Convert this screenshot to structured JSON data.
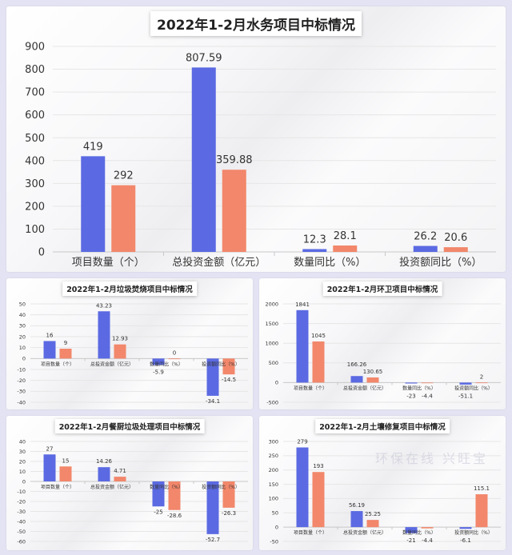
{
  "colors": {
    "series_2022": "#5b6ae2",
    "series_2021": "#f2876b",
    "background": "#e3e3f3"
  },
  "chart_data": [
    {
      "type": "bar",
      "title": "2022年1-2月水务项目中标情况",
      "categories": [
        "项目数量（个）",
        "总投资金额（亿元）",
        "数量同比（%）",
        "投资额同比（%）"
      ],
      "series": [
        {
          "values": [
            419,
            807.59,
            12.3,
            26.2
          ]
        },
        {
          "values": [
            292,
            359.88,
            28.1,
            20.6
          ]
        }
      ],
      "ylim": [
        0,
        900
      ],
      "yticks": [
        0,
        100,
        200,
        300,
        400,
        500,
        600,
        700,
        800,
        900
      ],
      "grid": true
    },
    {
      "type": "bar",
      "title": "2022年1-2月垃圾焚烧项目中标情况",
      "categories": [
        "项目数量（个）",
        "总投资金额（亿元）",
        "数量同比（%）",
        "投资额同比（%）"
      ],
      "series": [
        {
          "values": [
            16,
            43.23,
            -5.9,
            -34.1
          ]
        },
        {
          "values": [
            9,
            12.93,
            0,
            -14.5
          ]
        }
      ],
      "ylim": [
        -40,
        50
      ],
      "yticks": [
        -40,
        -30,
        -20,
        -10,
        0,
        10,
        20,
        30,
        40,
        50
      ],
      "grid": true
    },
    {
      "type": "bar",
      "title": "2022年1-2月环卫项目中标情况",
      "categories": [
        "项目数量（个）",
        "总投资金额（亿元）",
        "数量同比（%）",
        "投资额同比（%）"
      ],
      "series": [
        {
          "values": [
            1841,
            166.26,
            -23,
            -51.1
          ]
        },
        {
          "values": [
            1045,
            130.65,
            -4.4,
            2
          ]
        }
      ],
      "ylim": [
        -500,
        2000
      ],
      "yticks": [
        -500,
        0,
        500,
        1000,
        1500,
        2000
      ],
      "grid": true
    },
    {
      "type": "bar",
      "title": "2022年1-2月餐厨垃圾处理项目中标情况",
      "categories": [
        "项目数量（个）",
        "总投资金额（亿元）",
        "数量同比（%）",
        "投资额同比（%）"
      ],
      "series": [
        {
          "values": [
            27,
            14.26,
            -25,
            -52.7
          ]
        },
        {
          "values": [
            15,
            4.71,
            -28.6,
            -26.3
          ]
        }
      ],
      "ylim": [
        -60,
        40
      ],
      "yticks": [
        -60,
        -50,
        -40,
        -30,
        -20,
        -10,
        0,
        10,
        20,
        30,
        40
      ],
      "grid": true
    },
    {
      "type": "bar",
      "title": "2022年1-2月土壤修复项目中标情况",
      "categories": [
        "项目数量（个）",
        "总投资金额（亿元）",
        "数量同比（%）",
        "投资额同比（%）"
      ],
      "series": [
        {
          "values": [
            279,
            56.19,
            -21,
            -6.1
          ]
        },
        {
          "values": [
            193,
            25.25,
            -4.4,
            115.1
          ]
        }
      ],
      "ylim": [
        -50,
        300
      ],
      "yticks": [
        -50,
        0,
        50,
        100,
        150,
        200,
        250,
        300
      ],
      "grid": true
    }
  ],
  "watermark": "环保在线 兴旺宝"
}
